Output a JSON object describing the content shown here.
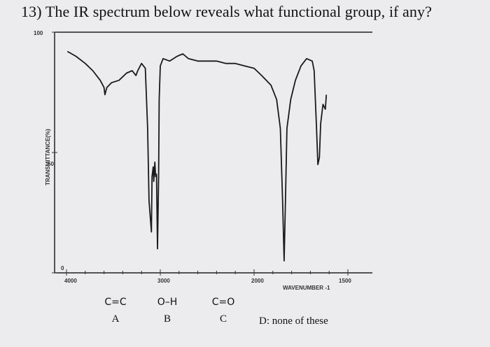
{
  "question": "13) The IR spectrum below reveals what functional group, if any?",
  "chart_data": {
    "type": "line",
    "title": "",
    "xlabel": "WAVENUMBER -1",
    "ylabel": "TRANSMITTANCE(%)",
    "x_ticks": [
      "4000",
      "3000",
      "2000",
      "1500"
    ],
    "y_ticks": [
      "100",
      "50",
      "0"
    ],
    "xlim": [
      4000,
      1500
    ],
    "ylim": [
      0,
      100
    ],
    "grid": false,
    "series": [
      {
        "points": [
          [
            3990,
            92
          ],
          [
            3900,
            90
          ],
          [
            3800,
            87
          ],
          [
            3720,
            84
          ],
          [
            3640,
            80
          ],
          [
            3600,
            77
          ],
          [
            3590,
            74
          ],
          [
            3570,
            77
          ],
          [
            3520,
            79
          ],
          [
            3440,
            80
          ],
          [
            3360,
            83
          ],
          [
            3300,
            84
          ],
          [
            3260,
            82
          ],
          [
            3240,
            84
          ],
          [
            3200,
            87
          ],
          [
            3160,
            85
          ],
          [
            3135,
            60
          ],
          [
            3120,
            30
          ],
          [
            3095,
            17
          ],
          [
            3088,
            40
          ],
          [
            3075,
            44
          ],
          [
            3070,
            38
          ],
          [
            3058,
            46
          ],
          [
            3050,
            40
          ],
          [
            3040,
            41
          ],
          [
            3030,
            10
          ],
          [
            3018,
            40
          ],
          [
            3012,
            72
          ],
          [
            3000,
            86
          ],
          [
            2970,
            89
          ],
          [
            2900,
            88
          ],
          [
            2820,
            90
          ],
          [
            2760,
            91
          ],
          [
            2700,
            89
          ],
          [
            2600,
            88
          ],
          [
            2500,
            88
          ],
          [
            2400,
            88
          ],
          [
            2300,
            87
          ],
          [
            2200,
            87
          ],
          [
            2100,
            86
          ],
          [
            2000,
            85
          ],
          [
            1960,
            82
          ],
          [
            1910,
            78
          ],
          [
            1880,
            72
          ],
          [
            1860,
            60
          ],
          [
            1848,
            30
          ],
          [
            1840,
            5
          ],
          [
            1833,
            30
          ],
          [
            1825,
            60
          ],
          [
            1805,
            72
          ],
          [
            1780,
            80
          ],
          [
            1750,
            86
          ],
          [
            1720,
            89
          ],
          [
            1690,
            88
          ],
          [
            1680,
            84
          ],
          [
            1667,
            60
          ],
          [
            1660,
            45
          ],
          [
            1652,
            48
          ],
          [
            1645,
            62
          ],
          [
            1633,
            70
          ],
          [
            1620,
            68
          ],
          [
            1615,
            74
          ]
        ]
      }
    ]
  },
  "choices": [
    {
      "formula": "C=C",
      "letter": "A"
    },
    {
      "formula": "O–H",
      "letter": "B"
    },
    {
      "formula": "C=O",
      "letter": "C"
    }
  ],
  "choice_d": "D: none of these"
}
